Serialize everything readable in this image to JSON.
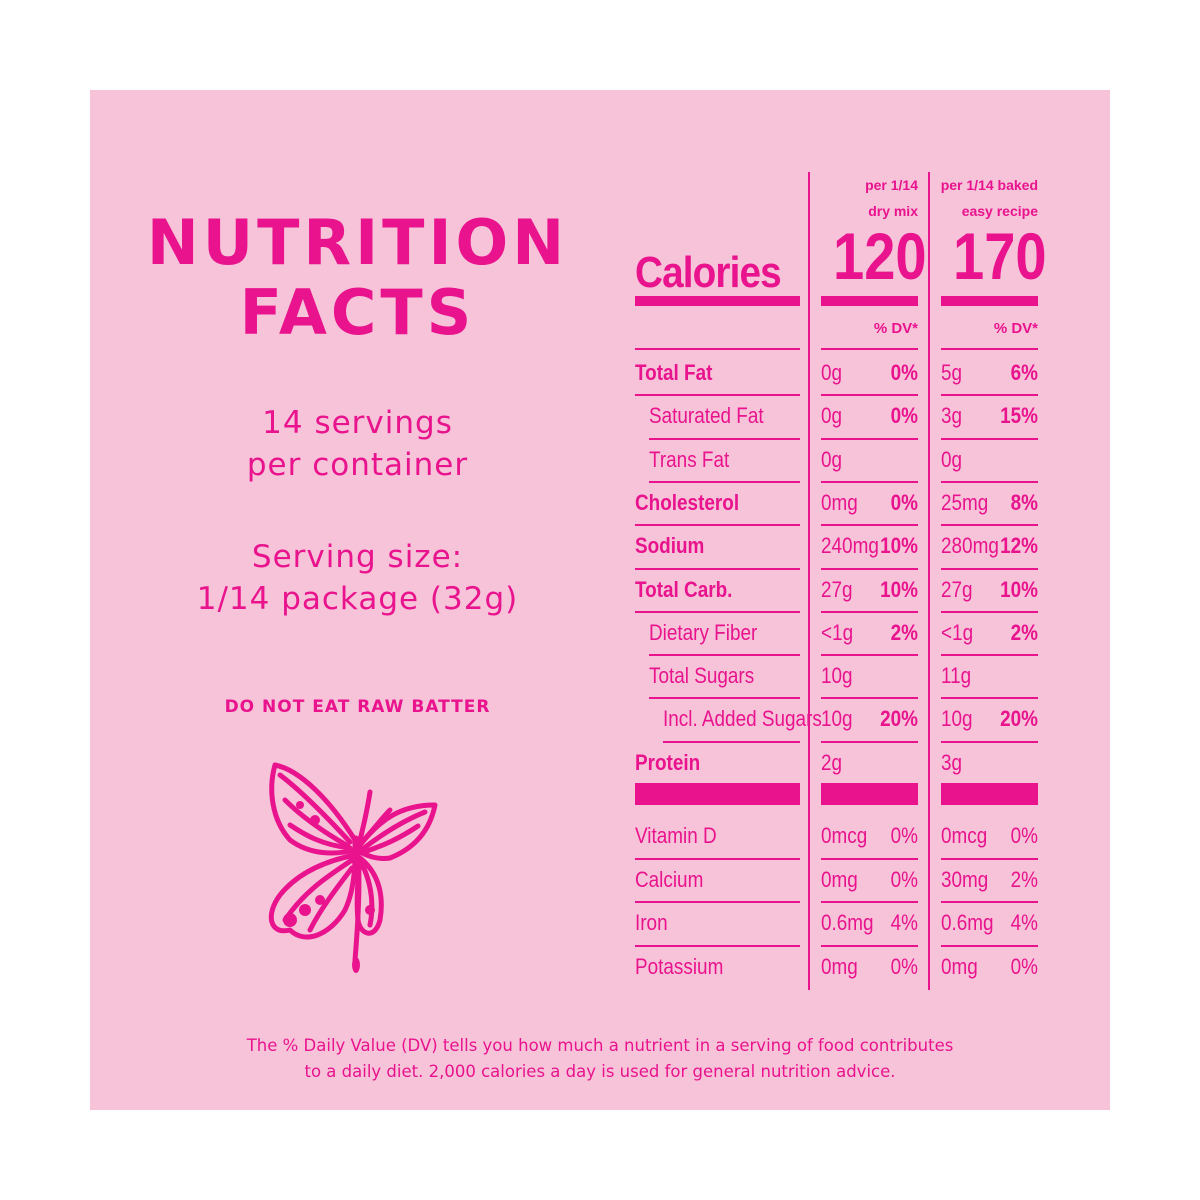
{
  "title": {
    "line1": "NUTRITION",
    "line2": "FACTS"
  },
  "servings": {
    "line1": "14 servings",
    "line2": "per container"
  },
  "serving_size": {
    "line1": "Serving size:",
    "line2": "1/14 package (32g)"
  },
  "warning": "DO NOT EAT RAW BATTER",
  "columns": [
    {
      "header_line1": "per 1/14",
      "header_line2": "dry mix",
      "calories": "120",
      "dv_label": "% DV*"
    },
    {
      "header_line1": "per 1/14 baked",
      "header_line2": "easy recipe",
      "calories": "170",
      "dv_label": "% DV*"
    }
  ],
  "calories_label": "Calories",
  "nutrients": [
    {
      "name": "Total Fat",
      "bold": true,
      "a1": "0g",
      "p1": "0%",
      "a2": "5g",
      "p2": "6%"
    },
    {
      "name": "Saturated Fat",
      "bold": false,
      "a1": "0g",
      "p1": "0%",
      "a2": "3g",
      "p2": "15%"
    },
    {
      "name": "Trans Fat",
      "bold": false,
      "a1": "0g",
      "p1": "",
      "a2": "0g",
      "p2": ""
    },
    {
      "name": "Cholesterol",
      "bold": true,
      "a1": "0mg",
      "p1": "0%",
      "a2": "25mg",
      "p2": "8%"
    },
    {
      "name": "Sodium",
      "bold": true,
      "a1": "240mg",
      "p1": "10%",
      "a2": "280mg",
      "p2": "12%"
    },
    {
      "name": "Total Carb.",
      "bold": true,
      "a1": "27g",
      "p1": "10%",
      "a2": "27g",
      "p2": "10%"
    },
    {
      "name": "Dietary Fiber",
      "bold": false,
      "a1": "<1g",
      "p1": "2%",
      "a2": "<1g",
      "p2": "2%"
    },
    {
      "name": "Total Sugars",
      "bold": false,
      "a1": "10g",
      "p1": "",
      "a2": "11g",
      "p2": ""
    },
    {
      "name": "Incl. Added Sugars",
      "bold": false,
      "a1": "10g",
      "p1": "20%",
      "a2": "10g",
      "p2": "20%"
    },
    {
      "name": "Protein",
      "bold": true,
      "a1": "2g",
      "p1": "",
      "a2": "3g",
      "p2": ""
    }
  ],
  "vitamins": [
    {
      "name": "Vitamin D",
      "a1": "0mcg",
      "p1": "0%",
      "a2": "0mcg",
      "p2": "0%"
    },
    {
      "name": "Calcium",
      "a1": "0mg",
      "p1": "0%",
      "a2": "30mg",
      "p2": "2%"
    },
    {
      "name": "Iron",
      "a1": "0.6mg",
      "p1": "4%",
      "a2": "0.6mg",
      "p2": "4%"
    },
    {
      "name": "Potassium",
      "a1": "0mg",
      "p1": "0%",
      "a2": "0mg",
      "p2": "0%"
    }
  ],
  "footnote": {
    "line1": "The % Daily Value (DV) tells you how much a nutrient in a serving of food contributes",
    "line2": "to a daily diet. 2,000 calories a day is used for general nutrition advice."
  },
  "colors": {
    "background": "#f7c3d9",
    "accent": "#e8138d"
  },
  "icons": [
    "butterfly-icon"
  ]
}
